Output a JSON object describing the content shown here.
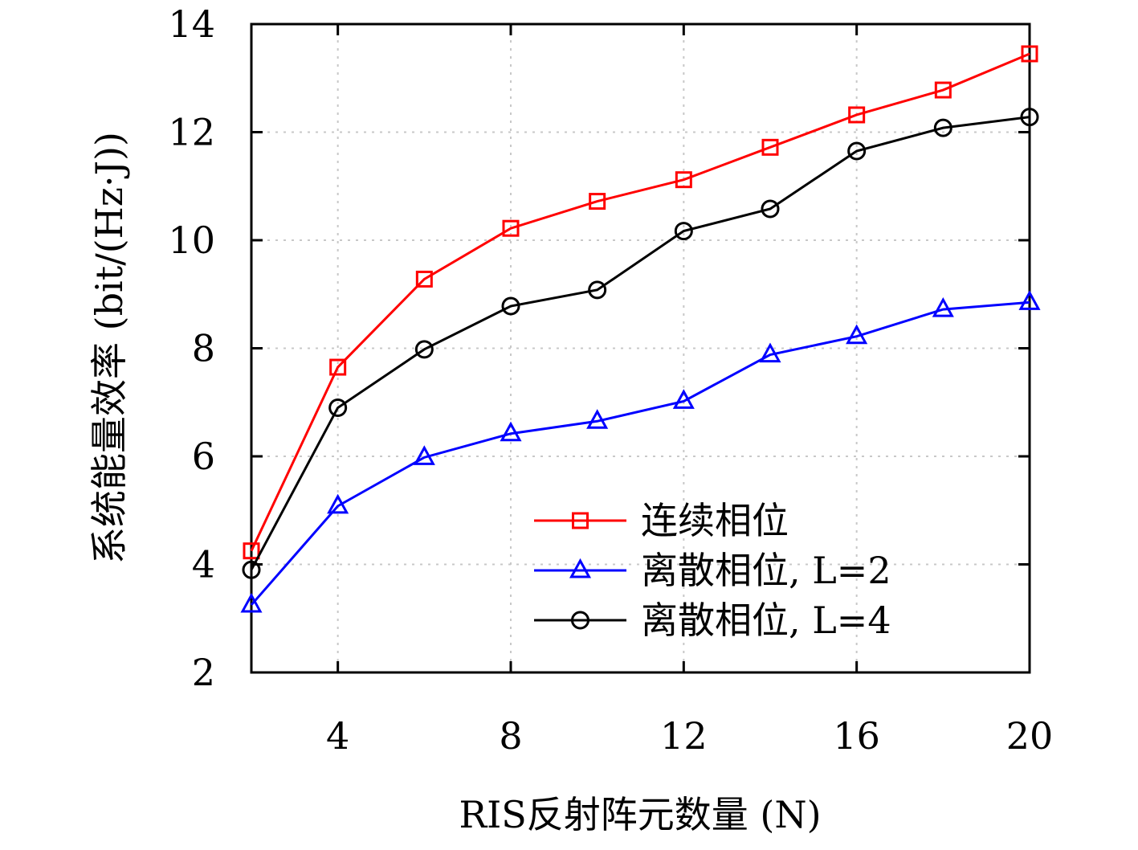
{
  "chart_data": {
    "type": "line",
    "xlabel": "RIS反射阵元数量 (N)",
    "ylabel": "系统能量效率 (bit/(Hz·J))",
    "xlim": [
      2,
      20
    ],
    "ylim": [
      2,
      14
    ],
    "xticks": [
      4,
      8,
      12,
      16,
      20
    ],
    "yticks": [
      2,
      4,
      6,
      8,
      10,
      12,
      14
    ],
    "grid": true,
    "legend_position": "lower-right",
    "x": [
      2,
      4,
      6,
      8,
      10,
      12,
      14,
      16,
      18,
      20
    ],
    "series": [
      {
        "name": "连续相位",
        "color": "#ff0000",
        "marker": "square",
        "values": [
          4.25,
          7.65,
          9.28,
          10.22,
          10.72,
          11.12,
          11.72,
          12.32,
          12.78,
          13.45
        ]
      },
      {
        "name": "离散相位, L=2",
        "color": "#0000ff",
        "marker": "triangle",
        "values": [
          3.25,
          5.08,
          5.98,
          6.42,
          6.65,
          7.02,
          7.88,
          8.22,
          8.72,
          8.85
        ]
      },
      {
        "name": "离散相位, L=4",
        "color": "#000000",
        "marker": "circle",
        "values": [
          3.9,
          6.9,
          7.98,
          8.78,
          9.08,
          10.17,
          10.58,
          11.65,
          12.08,
          12.28
        ]
      }
    ]
  }
}
